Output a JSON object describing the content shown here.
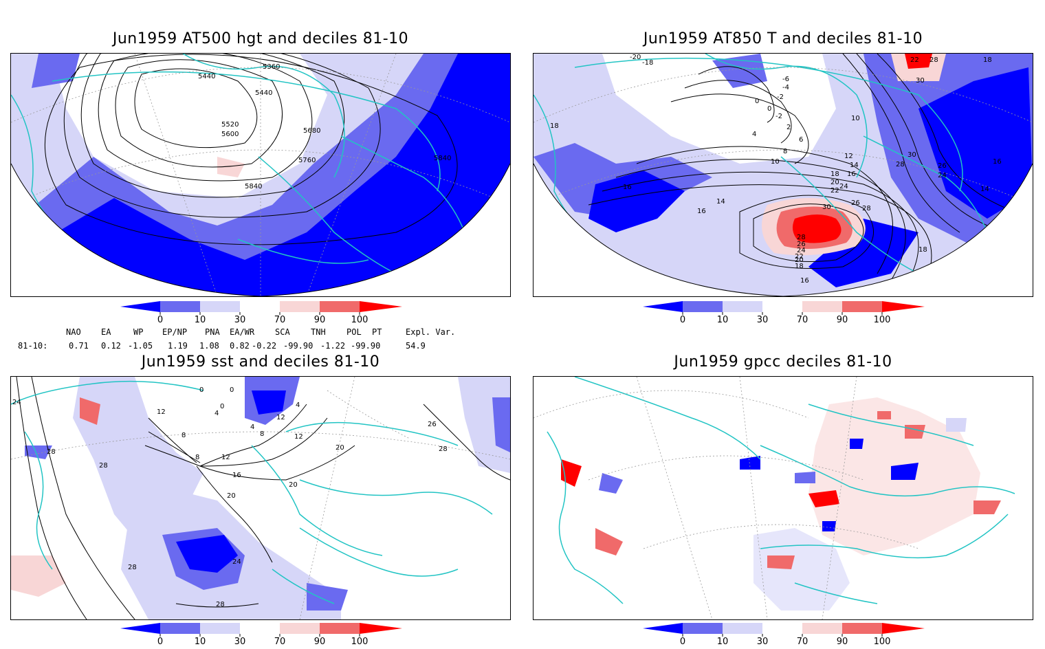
{
  "panels": [
    {
      "title": "Jun1959 AT500 hgt and deciles 81-10",
      "contour_labels": [
        "5360",
        "5440",
        "5440",
        "5520",
        "5600",
        "5680",
        "5760",
        "5840",
        "5840"
      ]
    },
    {
      "title": "Jun1959 AT850 T and deciles 81-10",
      "contour_labels": [
        "-20",
        "-18",
        "-6",
        "-4",
        "-2",
        "0",
        "-2",
        "0",
        "2",
        "4",
        "6",
        "8",
        "10",
        "10",
        "12",
        "14",
        "16",
        "18",
        "20",
        "22",
        "24",
        "26",
        "28",
        "30",
        "28",
        "26",
        "24",
        "22",
        "20",
        "18",
        "16",
        "16",
        "16",
        "14",
        "14",
        "16",
        "18",
        "18",
        "22",
        "28",
        "30",
        "30",
        "28",
        "26",
        "24",
        "16",
        "18"
      ]
    },
    {
      "title": "Jun1959 sst and deciles 81-10",
      "contour_labels": [
        "24",
        "28",
        "28",
        "12",
        "8",
        "8",
        "4",
        "0",
        "0",
        "0",
        "4",
        "4",
        "8",
        "12",
        "12",
        "16",
        "20",
        "20",
        "20",
        "24",
        "26",
        "28",
        "28",
        "28",
        "12"
      ]
    },
    {
      "title": "Jun1959 gpcc deciles 81-10",
      "contour_labels": []
    }
  ],
  "colorbar": {
    "tick_labels": [
      "0",
      "10",
      "30",
      "70",
      "90",
      "100"
    ],
    "colors": {
      "dark_blue": "#0000ff",
      "mid_blue": "#6a6af0",
      "light_blue": "#d6d6f8",
      "white": "#ffffff",
      "light_red": "#f8d6d6",
      "mid_red": "#f06a6a",
      "dark_red": "#ff0000"
    }
  },
  "indices": {
    "headers": [
      "NAO",
      "EA",
      "WP",
      "EP/NP",
      "PNA",
      "EA/WR",
      "SCA",
      "TNH",
      "POL",
      "PT",
      "Expl. Var."
    ],
    "row_label": "81-10:",
    "values": [
      "0.71",
      "0.12",
      "-1.05",
      "1.19",
      "1.08",
      "0.82",
      "-0.22",
      "-99.90",
      "-1.22",
      "-99.90",
      "54.9"
    ]
  },
  "map_colors": {
    "coastline": "#22c4c4",
    "grid": "#999999",
    "contour": "#000000"
  }
}
